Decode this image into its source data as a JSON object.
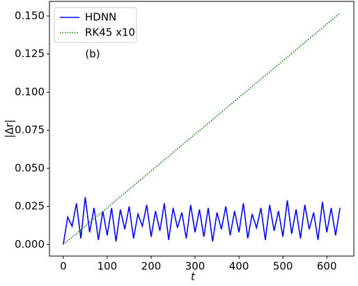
{
  "chart_data": {
    "type": "line",
    "x_label": "t",
    "y_label": "|Δr|",
    "annotation": "(b)",
    "x": [
      0,
      10,
      20,
      30,
      40,
      50,
      60,
      70,
      80,
      90,
      100,
      110,
      120,
      130,
      140,
      150,
      160,
      170,
      180,
      190,
      200,
      210,
      220,
      230,
      240,
      250,
      260,
      270,
      280,
      290,
      300,
      310,
      320,
      330,
      340,
      350,
      360,
      370,
      380,
      390,
      400,
      410,
      420,
      430,
      440,
      450,
      460,
      470,
      480,
      490,
      500,
      510,
      520,
      530,
      540,
      550,
      560,
      570,
      580,
      590,
      600,
      610,
      620,
      630
    ],
    "series": [
      {
        "name": "HDNN",
        "color": "#0000ff",
        "style": "solid",
        "values": [
          0.0,
          0.018,
          0.012,
          0.027,
          0.004,
          0.031,
          0.008,
          0.024,
          0.003,
          0.022,
          0.006,
          0.024,
          0.002,
          0.023,
          0.01,
          0.025,
          0.004,
          0.02,
          0.012,
          0.026,
          0.005,
          0.022,
          0.009,
          0.027,
          0.003,
          0.024,
          0.011,
          0.021,
          0.004,
          0.026,
          0.008,
          0.023,
          0.005,
          0.024,
          0.002,
          0.021,
          0.01,
          0.025,
          0.006,
          0.022,
          0.008,
          0.027,
          0.004,
          0.02,
          0.011,
          0.024,
          0.003,
          0.026,
          0.009,
          0.022,
          0.005,
          0.029,
          0.007,
          0.023,
          0.004,
          0.026,
          0.01,
          0.021,
          0.003,
          0.028,
          0.008,
          0.024,
          0.006,
          0.024
        ]
      },
      {
        "name": "RK45 x10",
        "color": "#008000",
        "style": "dotted",
        "values": [
          0,
          0.0024,
          0.0048,
          0.0072,
          0.0097,
          0.0121,
          0.0145,
          0.0169,
          0.0193,
          0.0217,
          0.0241,
          0.0265,
          0.029,
          0.0314,
          0.0338,
          0.0362,
          0.0386,
          0.041,
          0.0434,
          0.0458,
          0.0483,
          0.0507,
          0.0531,
          0.0555,
          0.0579,
          0.0603,
          0.0627,
          0.0651,
          0.0676,
          0.07,
          0.0724,
          0.0748,
          0.0772,
          0.0796,
          0.082,
          0.0844,
          0.0869,
          0.0893,
          0.0917,
          0.0941,
          0.0965,
          0.0989,
          0.1013,
          0.1037,
          0.1062,
          0.1086,
          0.111,
          0.1134,
          0.1158,
          0.1182,
          0.1206,
          0.123,
          0.1255,
          0.1279,
          0.1303,
          0.1327,
          0.1351,
          0.1375,
          0.1399,
          0.1423,
          0.1448,
          0.1472,
          0.1496,
          0.152
        ]
      }
    ],
    "xlim": [
      -31.5,
      661.5
    ],
    "xticks": [
      0,
      100,
      200,
      300,
      400,
      500,
      600
    ],
    "ylim": [
      -0.0076,
      0.1596
    ],
    "yticks": [
      {
        "value": 0,
        "label": "0.000"
      },
      {
        "value": 0.025,
        "label": "0.025"
      },
      {
        "value": 0.05,
        "label": "0.050"
      },
      {
        "value": 0.075,
        "label": "0.075"
      },
      {
        "value": 0.1,
        "label": "0.100"
      },
      {
        "value": 0.125,
        "label": "0.125"
      },
      {
        "value": 0.15,
        "label": "0.150"
      }
    ],
    "legend": "upper left",
    "grid": false
  }
}
